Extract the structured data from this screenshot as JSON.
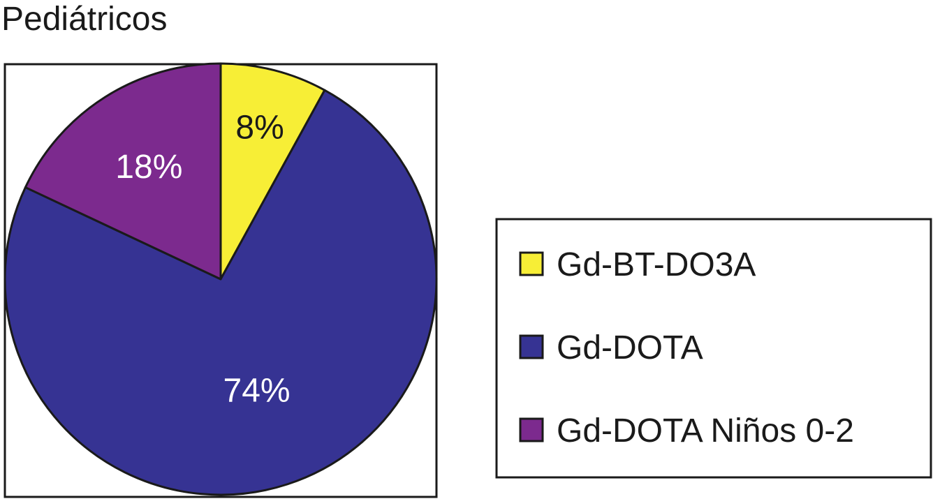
{
  "chart_data": {
    "type": "pie",
    "title": "Pediátricos",
    "categories": [
      "Gd-BT-DO3A",
      "Gd-DOTA",
      "Gd-DOTA Niños 0-2"
    ],
    "values": [
      8,
      74,
      18
    ],
    "labels": [
      "8%",
      "74%",
      "18%"
    ],
    "colors": [
      "#f7ee36",
      "#363393",
      "#7c2a8e"
    ],
    "label_colors": [
      "#1a1a1a",
      "#ffffff",
      "#ffffff"
    ],
    "start": "12 o'clock",
    "direction": "clockwise",
    "legend_position": "right"
  }
}
